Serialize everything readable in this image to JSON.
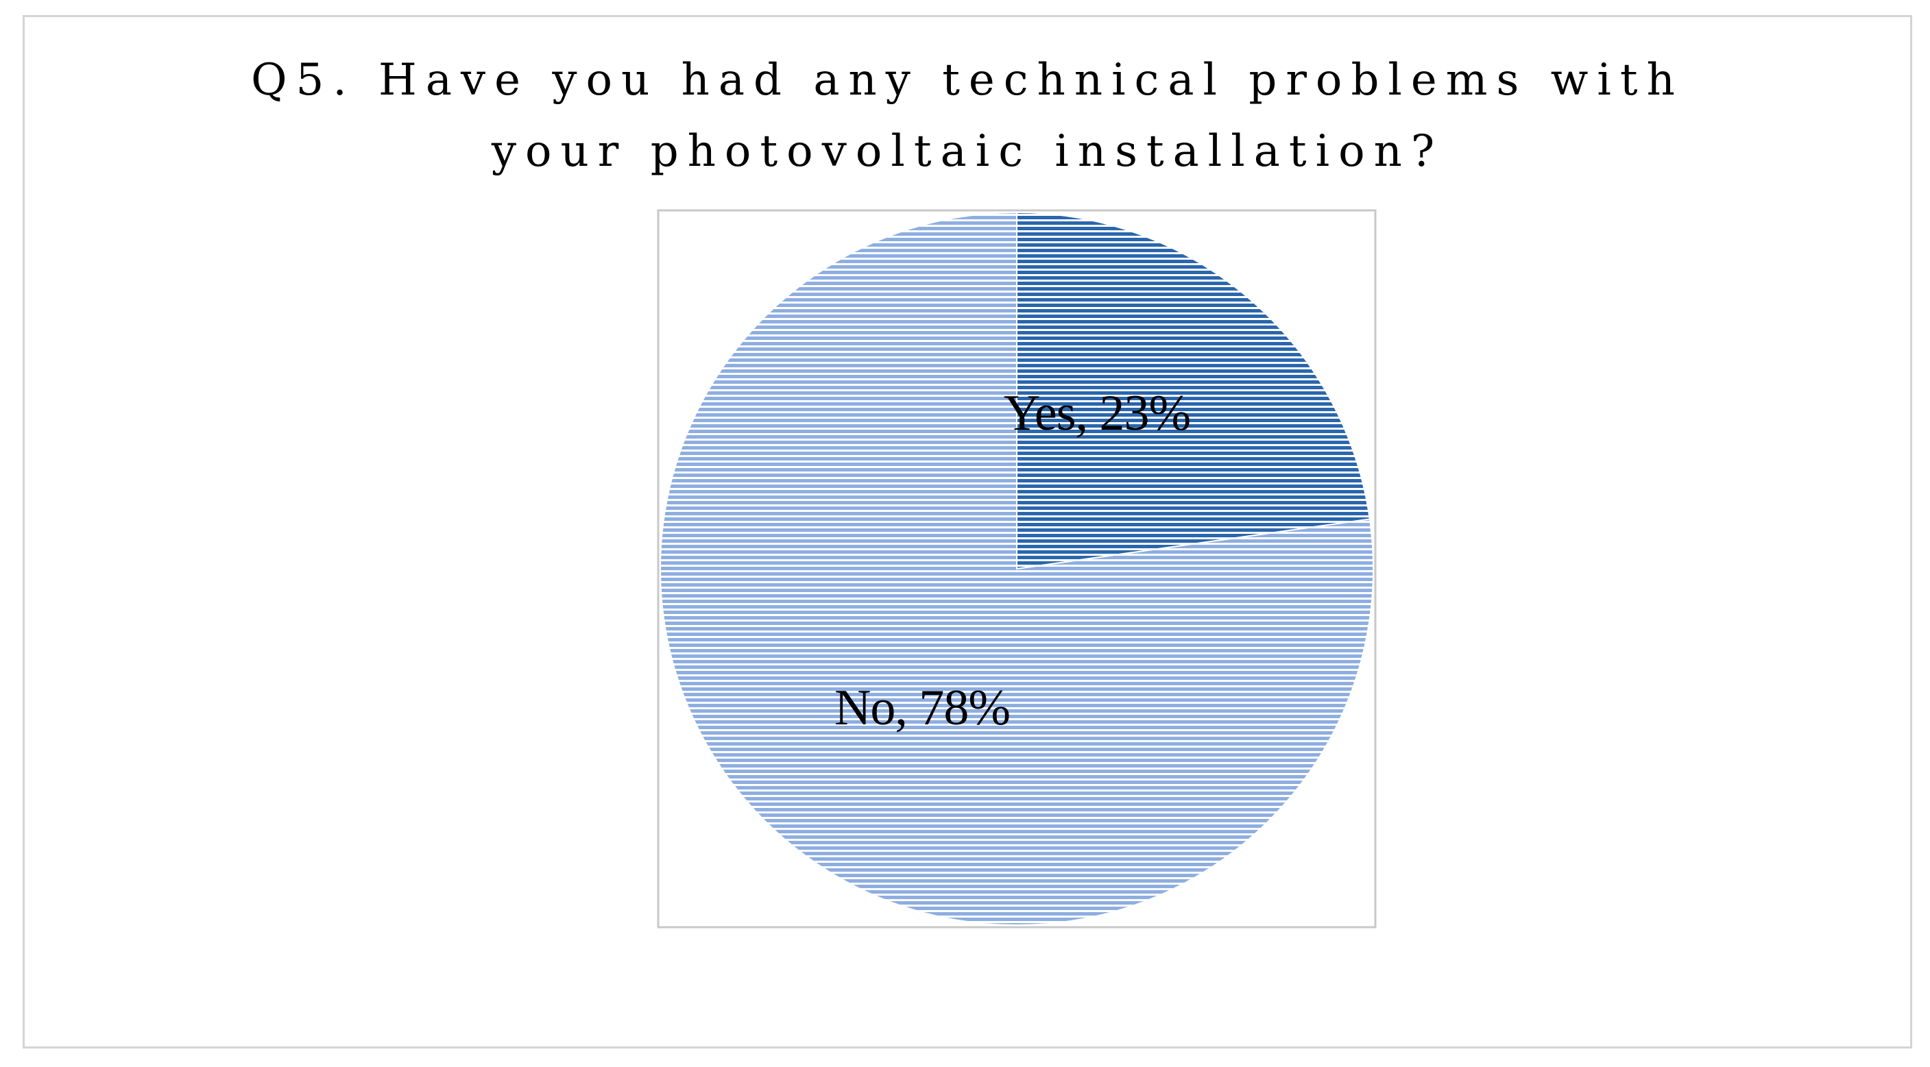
{
  "chart_data": {
    "type": "pie",
    "title_lines": [
      "Q5. Have you had any technical problems with",
      "your photovoltaic installation?"
    ],
    "slices": [
      {
        "name": "Yes",
        "label": "Yes, 23%",
        "value": 23,
        "color": "#2e6db4"
      },
      {
        "name": "No",
        "label": "No, 78%",
        "value": 78,
        "color": "#93b3e3"
      }
    ],
    "start_angle_deg": 0,
    "direction": "clockwise",
    "fill_pattern": "horizontal-stripes",
    "legend": "none"
  }
}
